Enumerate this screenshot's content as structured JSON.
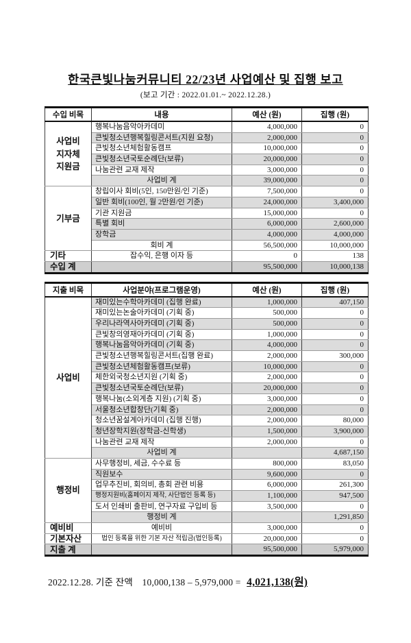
{
  "page": {
    "title": "한국큰빛나눔커뮤니티 22/23년 사업예산 및 집행 보고",
    "subtitle": "(보고 기간 : 2022.01.01.~ 2022.12.28.)"
  },
  "colors": {
    "row_shade": "#dcdcdc",
    "total_shade": "#cfcfcf"
  },
  "income_table": {
    "headers": [
      "수입 비목",
      "내용",
      "예산 (원)",
      "집행 (원)"
    ],
    "rows": [
      {
        "s": 0,
        "c": [
          {
            "t": "사업비\n지자체\n지원금",
            "k": "group",
            "rs": 6
          },
          {
            "t": "행복나눔음악아카데미"
          },
          {
            "t": "4,000,000"
          },
          {
            "t": "0"
          }
        ]
      },
      {
        "s": 1,
        "c": [
          {
            "t": "큰빛청소년행복힐링콘서트(지원 요청)"
          },
          {
            "t": "2,000,000"
          },
          {
            "t": "0"
          }
        ]
      },
      {
        "s": 0,
        "c": [
          {
            "t": "큰빛청소년체험활동캠프"
          },
          {
            "t": "10,000,000"
          },
          {
            "t": "0"
          }
        ]
      },
      {
        "s": 1,
        "c": [
          {
            "t": "큰빛청소년국토순례단(보류)"
          },
          {
            "t": "20,000,000"
          },
          {
            "t": "0"
          }
        ]
      },
      {
        "s": 0,
        "c": [
          {
            "t": "나눔관련 교재 제작"
          },
          {
            "t": "3,000,000"
          },
          {
            "t": "0"
          }
        ]
      },
      {
        "s": 1,
        "c": [
          {
            "t": "사업비 계",
            "a": "c"
          },
          {
            "t": "39,000,000"
          },
          {
            "t": "0"
          }
        ]
      },
      {
        "s": 0,
        "c": [
          {
            "t": "기부금",
            "k": "group",
            "rs": 6
          },
          {
            "t": "창립이사 회비(5인, 150만원/인 기준)"
          },
          {
            "t": "7,500,000"
          },
          {
            "t": "0"
          }
        ]
      },
      {
        "s": 1,
        "c": [
          {
            "t": "일반 회비(100인, 월 2만원/인 기준)"
          },
          {
            "t": "24,000,000"
          },
          {
            "t": "3,400,000"
          }
        ]
      },
      {
        "s": 0,
        "c": [
          {
            "t": "기관 지원금"
          },
          {
            "t": "15,000,000"
          },
          {
            "t": "0"
          }
        ]
      },
      {
        "s": 1,
        "c": [
          {
            "t": "특별 회비"
          },
          {
            "t": "6,000,000"
          },
          {
            "t": "2,600,000"
          }
        ]
      },
      {
        "s": 1,
        "c": [
          {
            "t": "장학금"
          },
          {
            "t": "4,000,000"
          },
          {
            "t": "4,000,000"
          }
        ]
      },
      {
        "s": 0,
        "c": [
          {
            "t": "회비 계",
            "a": "c"
          },
          {
            "t": "56,500,000"
          },
          {
            "t": "10,000,000"
          }
        ]
      },
      {
        "s": 0,
        "c": [
          {
            "t": "기타",
            "k": "label"
          },
          {
            "t": "잡수익, 은행 이자 등",
            "a": "c"
          },
          {
            "t": "0"
          },
          {
            "t": "138"
          }
        ]
      },
      {
        "s": 2,
        "c": [
          {
            "t": "수입 계",
            "k": "label"
          },
          {
            "t": ""
          },
          {
            "t": "95,500,000"
          },
          {
            "t": "10,000,138"
          }
        ]
      }
    ]
  },
  "expense_table": {
    "headers": [
      "지출 비목",
      "사업분야(프로그램운영)",
      "예산 (원)",
      "집행 (원)"
    ],
    "rows": [
      {
        "s": 1,
        "c": [
          {
            "t": "사업비",
            "k": "group",
            "rs": 15
          },
          {
            "t": "재미있는수학아카데미 (집행 완료)"
          },
          {
            "t": "1,000,000"
          },
          {
            "t": "407,150"
          }
        ]
      },
      {
        "s": 0,
        "c": [
          {
            "t": "재미있는논술아카데미 (기획 중)"
          },
          {
            "t": "500,000"
          },
          {
            "t": "0"
          }
        ]
      },
      {
        "s": 1,
        "c": [
          {
            "t": "우리나라역사아카데미 (기획 중)"
          },
          {
            "t": "500,000"
          },
          {
            "t": "0"
          }
        ]
      },
      {
        "s": 0,
        "c": [
          {
            "t": "큰빛창의영재아카데미 (기획 중)"
          },
          {
            "t": "1,000,000"
          },
          {
            "t": "0"
          }
        ]
      },
      {
        "s": 1,
        "c": [
          {
            "t": "행복나눔음악아카데미 (기획 중)"
          },
          {
            "t": "4,000,000"
          },
          {
            "t": "0"
          }
        ]
      },
      {
        "s": 0,
        "c": [
          {
            "t": "큰빛청소년행복힐링콘서트(집행 완료)"
          },
          {
            "t": "2,000,000"
          },
          {
            "t": "300,000"
          }
        ]
      },
      {
        "s": 1,
        "c": [
          {
            "t": "큰빛청소년체험활동캠프(보류)"
          },
          {
            "t": "10,000,000"
          },
          {
            "t": "0"
          }
        ]
      },
      {
        "s": 0,
        "c": [
          {
            "t": "체한외국청소년지원 (기획 중)"
          },
          {
            "t": "2,000,000"
          },
          {
            "t": "0"
          }
        ]
      },
      {
        "s": 1,
        "c": [
          {
            "t": "큰빛청소년국토순례단(보류)"
          },
          {
            "t": "20,000,000"
          },
          {
            "t": "0"
          }
        ]
      },
      {
        "s": 0,
        "c": [
          {
            "t": "행복나눔(소외계층 지원) (기획 중)"
          },
          {
            "t": "3,000,000"
          },
          {
            "t": "0"
          }
        ]
      },
      {
        "s": 1,
        "c": [
          {
            "t": "서울청소년합창단(기획 중)"
          },
          {
            "t": "2,000,000"
          },
          {
            "t": "0"
          }
        ]
      },
      {
        "s": 0,
        "c": [
          {
            "t": "청소년꿈설계아카데미 (집행 진행)"
          },
          {
            "t": "2,000,000"
          },
          {
            "t": "80,000"
          }
        ]
      },
      {
        "s": 1,
        "c": [
          {
            "t": "청년장학지원(장학금-신학생)"
          },
          {
            "t": "1,500,000"
          },
          {
            "t": "3,900,000"
          }
        ]
      },
      {
        "s": 0,
        "c": [
          {
            "t": "나눔관련 교재 제작"
          },
          {
            "t": "2,000,000"
          },
          {
            "t": "0"
          }
        ]
      },
      {
        "s": 1,
        "c": [
          {
            "t": "사업비 계",
            "a": "c"
          },
          {
            "t": ""
          },
          {
            "t": "4,687,150"
          }
        ]
      },
      {
        "s": 0,
        "c": [
          {
            "t": "행정비",
            "k": "group",
            "rs": 6
          },
          {
            "t": "사무행정비, 세금, 수수료 등"
          },
          {
            "t": "800,000"
          },
          {
            "t": "83,050"
          }
        ]
      },
      {
        "s": 1,
        "c": [
          {
            "t": "직원보수"
          },
          {
            "t": "9,600,000"
          },
          {
            "t": "0"
          }
        ]
      },
      {
        "s": 0,
        "c": [
          {
            "t": "업무추진비, 회의비, 총회 관련 비용"
          },
          {
            "t": "6,000,000"
          },
          {
            "t": "261,300"
          }
        ]
      },
      {
        "s": 1,
        "c": [
          {
            "t": "행정지원비(홈페이지 제작, 사단법인 등록 등)",
            "sm": true
          },
          {
            "t": "1,100,000"
          },
          {
            "t": "947,500"
          }
        ]
      },
      {
        "s": 0,
        "c": [
          {
            "t": "도서 인쇄비 출판비, 연구자료 구입비 등"
          },
          {
            "t": "3,500,000"
          },
          {
            "t": "0"
          }
        ]
      },
      {
        "s": 1,
        "c": [
          {
            "t": "행정비 계",
            "a": "c"
          },
          {
            "t": ""
          },
          {
            "t": "1,291,850"
          }
        ]
      },
      {
        "s": 0,
        "c": [
          {
            "t": "예비비",
            "k": "label"
          },
          {
            "t": "예비비",
            "a": "c"
          },
          {
            "t": "3,000,000"
          },
          {
            "t": "0"
          }
        ]
      },
      {
        "s": 0,
        "c": [
          {
            "t": "기본자산",
            "k": "label"
          },
          {
            "t": "법인 등록을 위한 기본 자산 적립금(법인등록)",
            "a": "c",
            "sm": true
          },
          {
            "t": "20,000,000"
          },
          {
            "t": "0"
          }
        ]
      },
      {
        "s": 2,
        "c": [
          {
            "t": "지출 계",
            "k": "label"
          },
          {
            "t": ""
          },
          {
            "t": "95,500,000"
          },
          {
            "t": "5,979,000"
          }
        ]
      }
    ]
  },
  "summary": {
    "prefix": "2022.12.28. 기준 잔액",
    "calculation": "10,000,138 – 5,979,000 =",
    "result": "4,021,138(원)"
  }
}
